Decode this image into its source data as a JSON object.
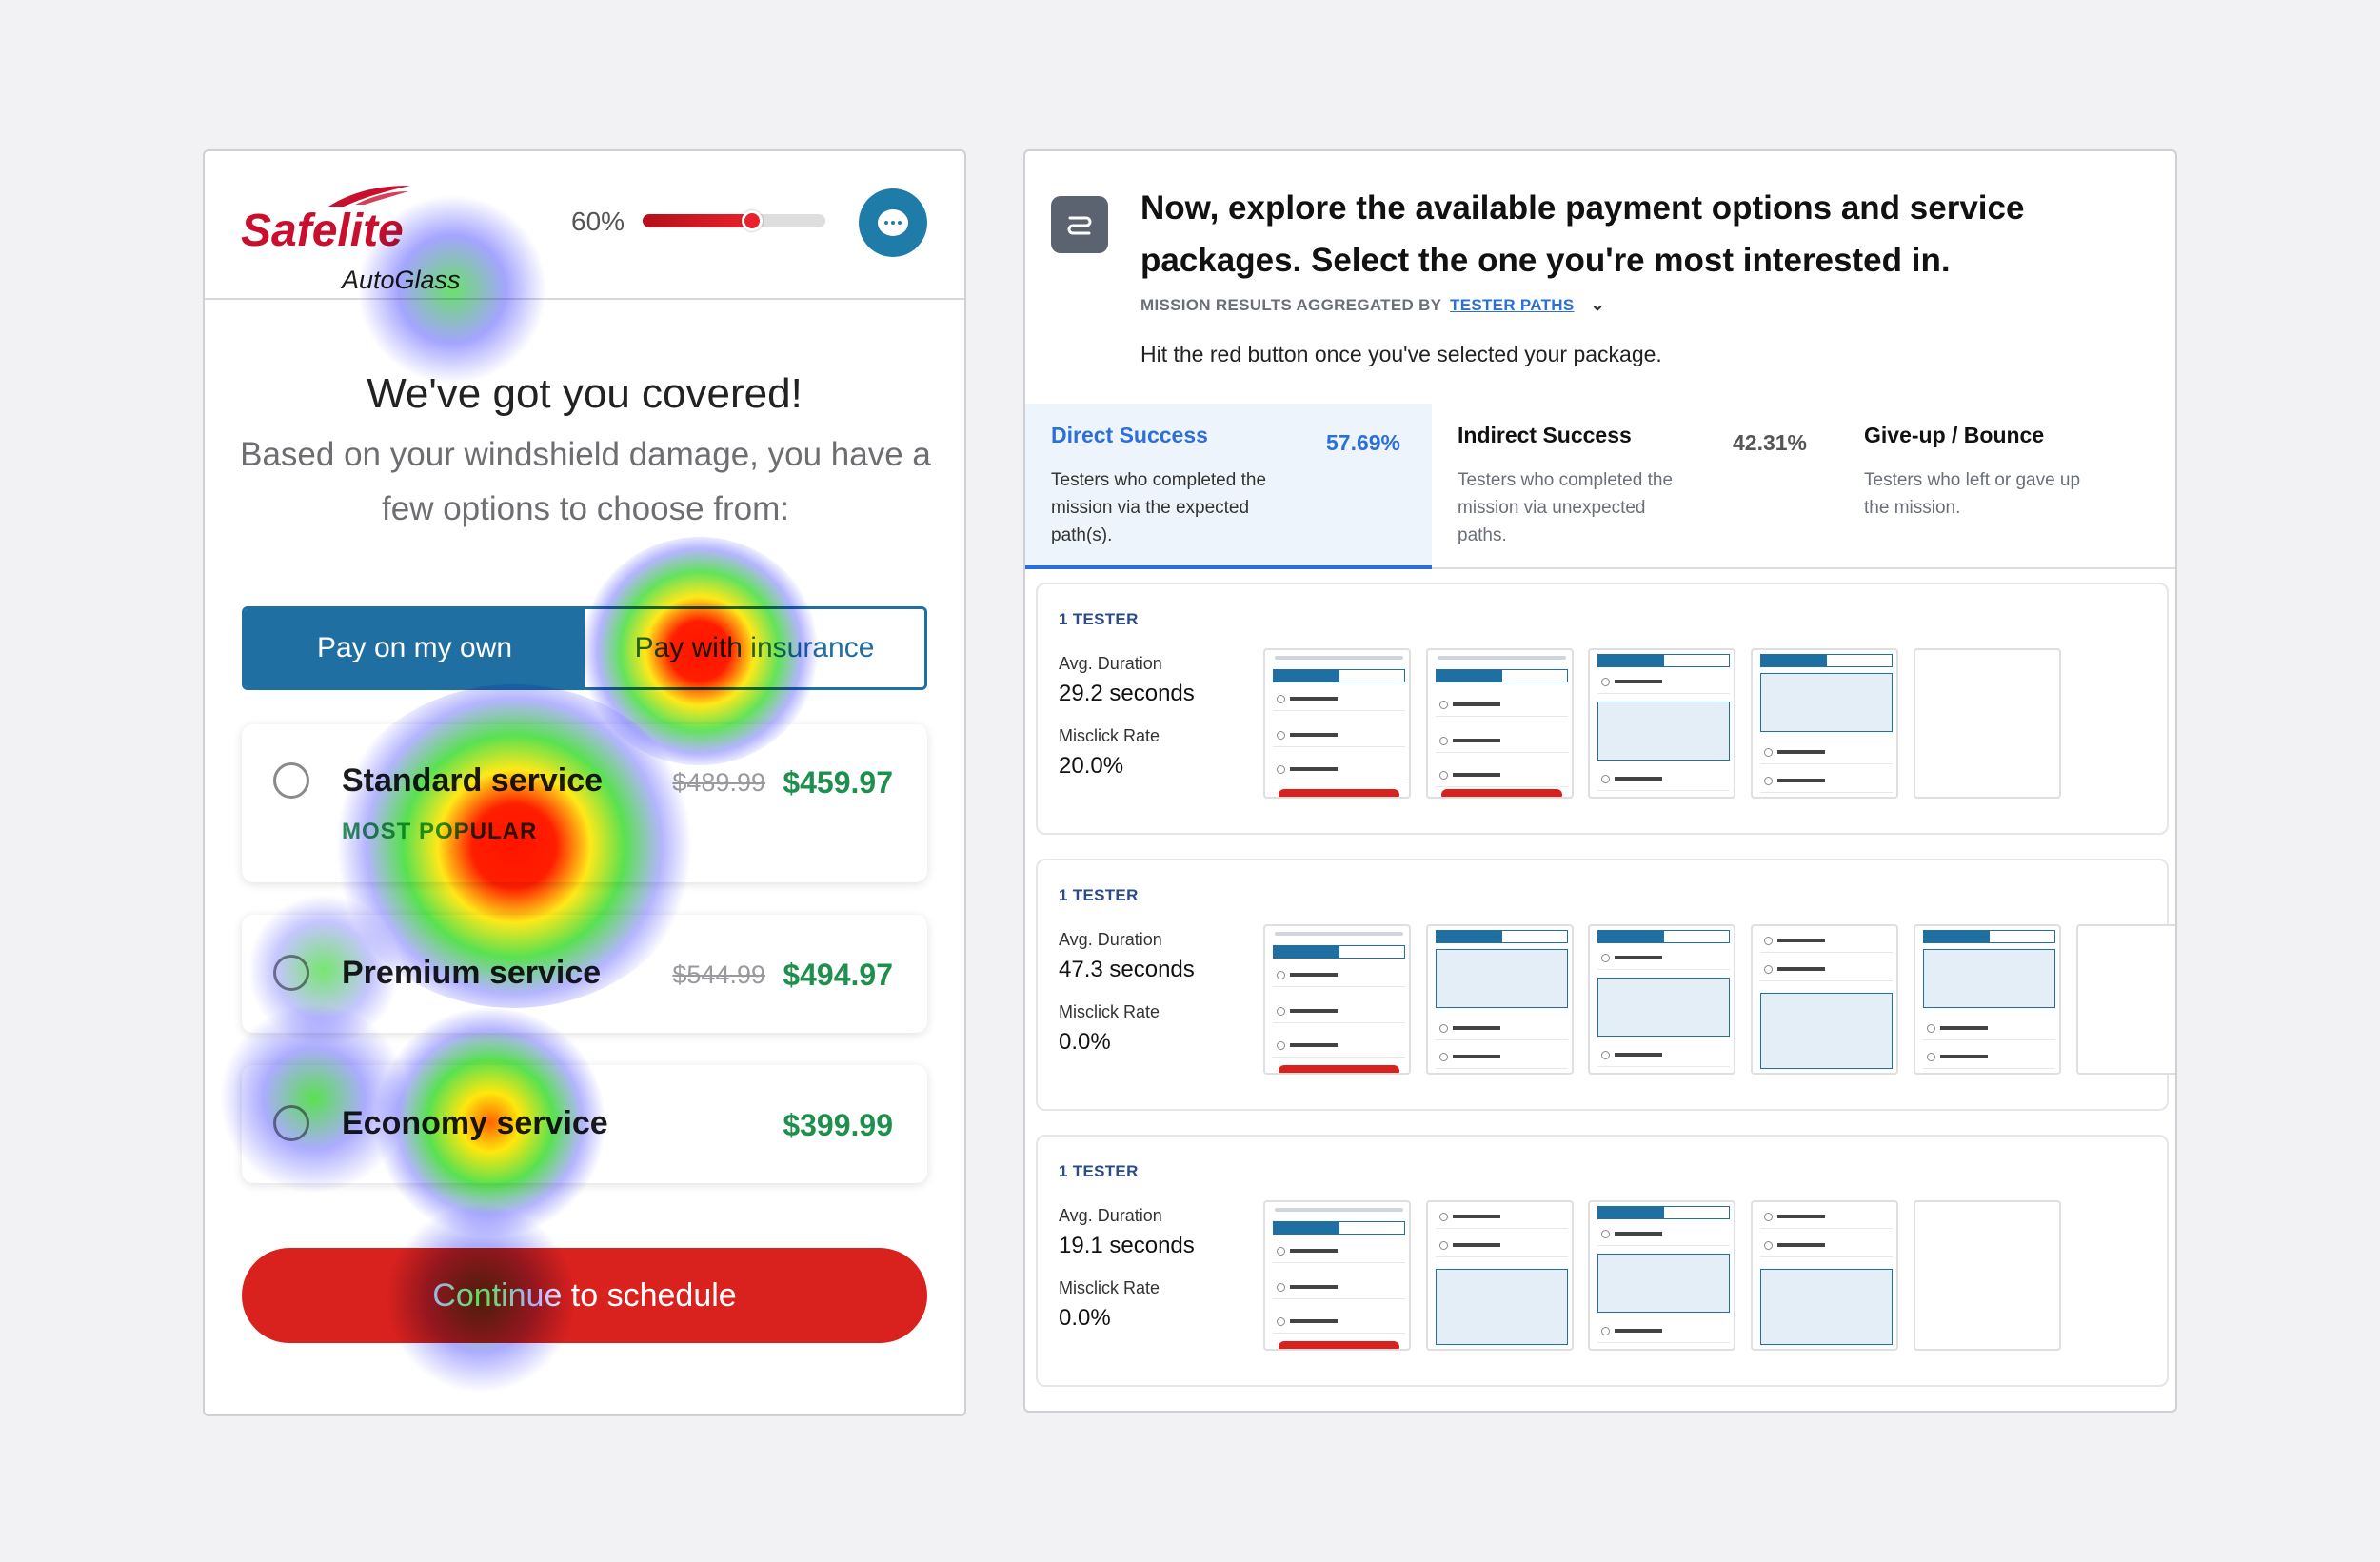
{
  "app": {
    "logo_brand": "Safelite",
    "logo_sub": "AutoGlass",
    "progress": {
      "label": "60%",
      "value": 0.6
    }
  },
  "screen": {
    "headline": "We've got you covered!",
    "subline": "Based on your windshield damage, you have a few options to choose from:",
    "payment_toggle": {
      "options": [
        "Pay on my own",
        "Pay with insurance"
      ],
      "selected": "Pay on my own"
    },
    "services": [
      {
        "name": "Standard service",
        "tag": "MOST POPULAR",
        "old_price": "$489.99",
        "price": "$459.97"
      },
      {
        "name": "Premium service",
        "tag": "",
        "old_price": "$544.99",
        "price": "$494.97"
      },
      {
        "name": "Economy service",
        "tag": "",
        "old_price": "",
        "price": "$399.99"
      }
    ],
    "cta": "Continue to schedule"
  },
  "heatmap_colors": {
    "hot": "#ff1a00",
    "warm": "#ffe600",
    "mid": "#3ddc30",
    "cool": "#3b3bff"
  },
  "mission": {
    "title": "Now, explore the available payment options and service packages. Select the one you're most interested in.",
    "aggregated_prefix": "MISSION RESULTS AGGREGATED BY",
    "aggregated_link": "TESTER PATHS",
    "description": "Hit the red button once you've selected your package.",
    "tabs": [
      {
        "name": "Direct Success",
        "pct": "57.69%",
        "desc": "Testers who completed the mission via the expected path(s)."
      },
      {
        "name": "Indirect Success",
        "pct": "42.31%",
        "desc": "Testers who completed the mission via unexpected paths."
      },
      {
        "name": "Give-up / Bounce",
        "pct": "",
        "desc": "Testers who left or gave up the mission."
      }
    ],
    "paths": [
      {
        "count": "1 TESTER",
        "duration_label": "Avg. Duration",
        "duration": "29.2 seconds",
        "misclick_label": "Misclick Rate",
        "misclick": "20.0%"
      },
      {
        "count": "1 TESTER",
        "duration_label": "Avg. Duration",
        "duration": "47.3 seconds",
        "misclick_label": "Misclick Rate",
        "misclick": "0.0%"
      },
      {
        "count": "1 TESTER",
        "duration_label": "Avg. Duration",
        "duration": "19.1 seconds",
        "misclick_label": "Misclick Rate",
        "misclick": "0.0%"
      }
    ]
  }
}
